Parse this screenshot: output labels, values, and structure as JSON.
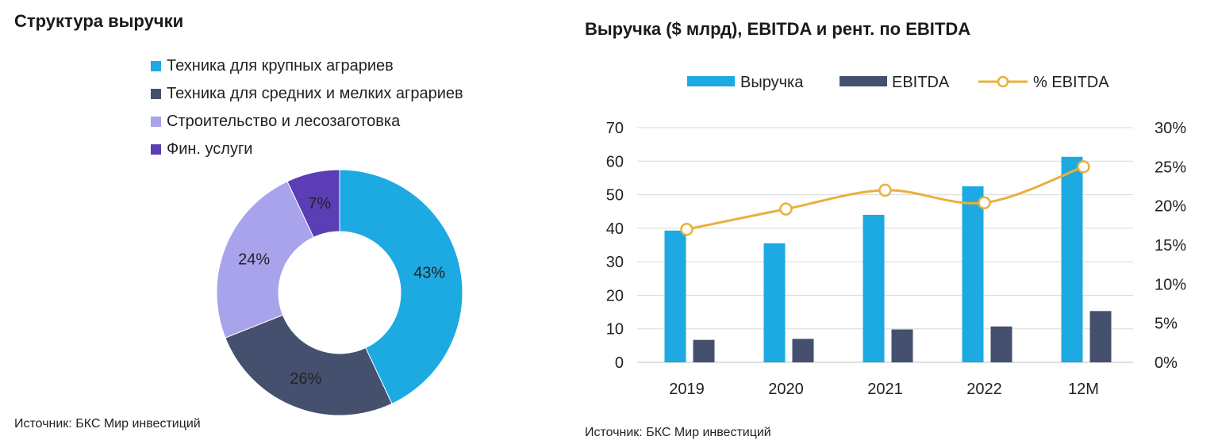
{
  "left_panel": {
    "title": "Структура выручки",
    "source": "Источник: БКС Мир инвестиций"
  },
  "right_panel": {
    "title": "Выручка ($ млрд), EBITDA и рент. по EBITDA",
    "source": "Источник: БКС Мир инвестиций"
  },
  "chart_data": [
    {
      "type": "pie",
      "variant": "donut",
      "title": "Структура выручки",
      "slices": [
        {
          "label": "Техника для крупных аграриев",
          "value": 43,
          "display": "43%",
          "color": "#1DA9E1"
        },
        {
          "label": "Техника для средних и мелких аграриев",
          "value": 26,
          "display": "26%",
          "color": "#44506E"
        },
        {
          "label": "Строительство и лесозаготовка",
          "value": 24,
          "display": "24%",
          "color": "#A9A3EC"
        },
        {
          "label": "Фин. услуги",
          "value": 7,
          "display": "7%",
          "color": "#5B3DB5"
        }
      ],
      "legend_position": "top"
    },
    {
      "type": "bar",
      "title": "Выручка ($ млрд), EBITDA и рент. по EBITDA",
      "categories": [
        "2019",
        "2020",
        "2021",
        "2022",
        "12M"
      ],
      "series": [
        {
          "name": "Выручка",
          "type": "bar",
          "axis": "left",
          "color": "#1DA9E1",
          "values": [
            39.3,
            35.5,
            44.0,
            52.5,
            61.3
          ]
        },
        {
          "name": "EBITDA",
          "type": "bar",
          "axis": "left",
          "color": "#44506E",
          "values": [
            6.7,
            7.0,
            9.8,
            10.7,
            15.3
          ]
        },
        {
          "name": "% EBITDA",
          "type": "line",
          "axis": "right",
          "color": "#E8B03C",
          "values": [
            17.0,
            19.6,
            22.0,
            20.4,
            25.0
          ]
        }
      ],
      "ylim_left": [
        0,
        70
      ],
      "yticks_left": [
        "0",
        "10",
        "20",
        "30",
        "40",
        "50",
        "60",
        "70"
      ],
      "ylim_right": [
        0,
        30
      ],
      "yticks_right": [
        "0%",
        "5%",
        "10%",
        "15%",
        "20%",
        "25%",
        "30%"
      ],
      "grid": true,
      "legend_position": "top"
    }
  ]
}
